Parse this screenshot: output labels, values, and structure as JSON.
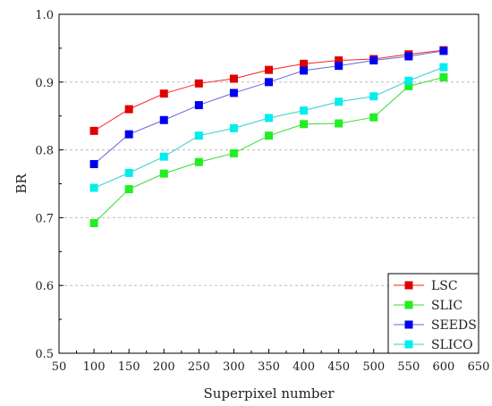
{
  "chart_data": {
    "type": "line",
    "xlabel": "Superpixel number",
    "ylabel": "BR",
    "xlim": [
      50,
      650
    ],
    "ylim": [
      0.5,
      1.0
    ],
    "xticks": [
      "50",
      "100",
      "150",
      "200",
      "250",
      "300",
      "350",
      "400",
      "450",
      "500",
      "550",
      "600",
      "650"
    ],
    "yticks": [
      "0.5",
      "0.6",
      "0.7",
      "0.8",
      "0.9",
      "1.0"
    ],
    "grid": "horizontal dashed",
    "legend_position": "bottom-right",
    "x": [
      100,
      150,
      200,
      250,
      300,
      350,
      400,
      450,
      500,
      550,
      600
    ],
    "series": [
      {
        "name": "LSC",
        "color": "#ff2020",
        "marker": "#e00000",
        "values": [
          0.828,
          0.86,
          0.883,
          0.898,
          0.905,
          0.918,
          0.927,
          0.932,
          0.934,
          0.941,
          0.947
        ]
      },
      {
        "name": "SLIC",
        "color": "#33dd33",
        "marker": "#22ee22",
        "values": [
          0.692,
          0.742,
          0.765,
          0.782,
          0.795,
          0.821,
          0.838,
          0.839,
          0.848,
          0.894,
          0.907
        ]
      },
      {
        "name": "SEEDS",
        "color": "#6666dd",
        "marker": "#0000ee",
        "values": [
          0.779,
          0.823,
          0.844,
          0.866,
          0.884,
          0.9,
          0.917,
          0.924,
          0.932,
          0.938,
          0.946
        ]
      },
      {
        "name": "SLICO",
        "color": "#33cccc",
        "marker": "#00eeee",
        "values": [
          0.744,
          0.766,
          0.79,
          0.821,
          0.832,
          0.847,
          0.858,
          0.871,
          0.879,
          0.902,
          0.922
        ]
      }
    ]
  }
}
